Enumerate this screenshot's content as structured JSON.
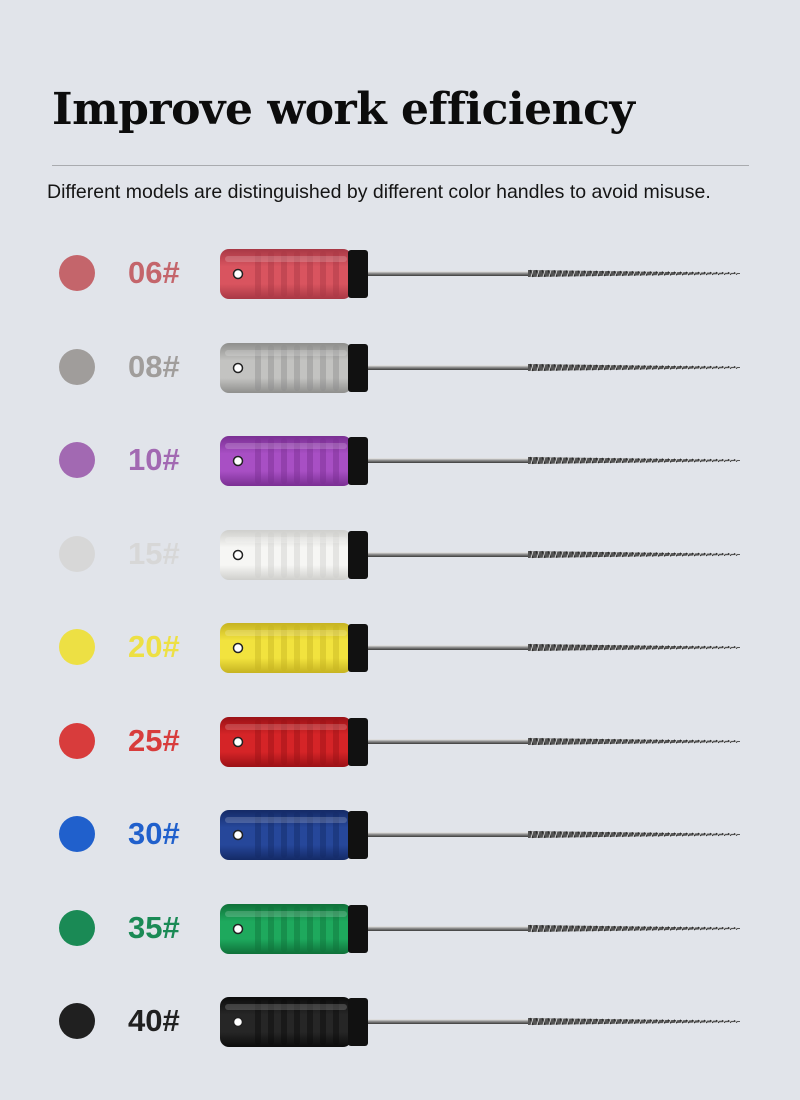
{
  "title": "Improve work efficiency",
  "subtitle": "Different models are distinguished by different color handles to avoid misuse.",
  "models": [
    {
      "label": "06#",
      "color": "#c4656b",
      "handle": "#d9545f",
      "handle_shade": "#a83845"
    },
    {
      "label": "08#",
      "color": "#a09d9b",
      "handle": "#c3c3c1",
      "handle_shade": "#8f8f8d"
    },
    {
      "label": "10#",
      "color": "#a269b2",
      "handle": "#a84fc4",
      "handle_shade": "#7a2f93"
    },
    {
      "label": "15#",
      "color": "#d7d7d7",
      "handle": "#f6f6f4",
      "handle_shade": "#cfcfcc"
    },
    {
      "label": "20#",
      "color": "#ede044",
      "handle": "#f2e33e",
      "handle_shade": "#c6b321"
    },
    {
      "label": "25#",
      "color": "#d83c3c",
      "handle": "#d52427",
      "handle_shade": "#9a1116"
    },
    {
      "label": "30#",
      "color": "#2060cc",
      "handle": "#26479a",
      "handle_shade": "#142a66"
    },
    {
      "label": "35#",
      "color": "#1a8a55",
      "handle": "#1ea95d",
      "handle_shade": "#0f7039"
    },
    {
      "label": "40#",
      "color": "#202020",
      "handle": "#262626",
      "handle_shade": "#0c0c0c"
    }
  ]
}
